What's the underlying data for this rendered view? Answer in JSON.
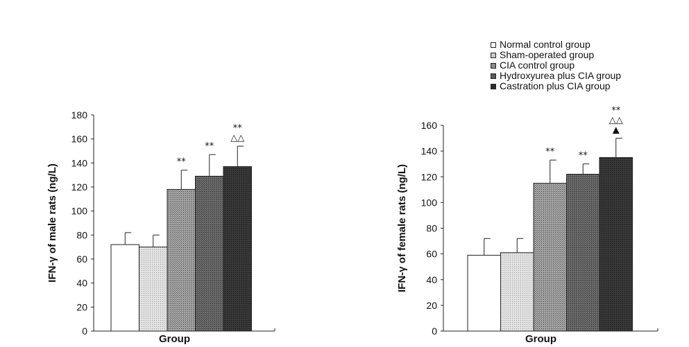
{
  "legend": {
    "entries": [
      "Normal control group",
      "Sham-operated group",
      "CIA control group",
      "Hydroxyurea plus CIA group",
      "Castration plus CIA group"
    ]
  },
  "colors": [
    "#ffffff",
    "#c8c8c8",
    "#8a8a8a",
    "#5e5e5e",
    "#2c2c2c"
  ],
  "chart_data": [
    {
      "type": "bar",
      "xlabel": "Group",
      "ylabel": "IFN-γ of male rats (ng/L)",
      "ylim": [
        0,
        180
      ],
      "yticks": [
        0,
        20,
        40,
        60,
        80,
        100,
        120,
        140,
        160,
        180
      ],
      "categories": [
        "Normal control group",
        "Sham-operated group",
        "CIA control group",
        "Hydroxyurea plus CIA group",
        "Castration plus CIA group"
      ],
      "values": [
        72,
        70,
        118,
        129,
        137
      ],
      "errors": [
        10,
        10,
        16,
        18,
        17
      ],
      "annotations": [
        [],
        [],
        [
          "**"
        ],
        [
          "**"
        ],
        [
          "△△",
          "**"
        ]
      ]
    },
    {
      "type": "bar",
      "xlabel": "Group",
      "ylabel": "IFN-γ of female rats (ng/L)",
      "ylim": [
        0,
        160
      ],
      "yticks": [
        0,
        20,
        40,
        60,
        80,
        100,
        120,
        140,
        160
      ],
      "categories": [
        "Normal control group",
        "Sham-operated group",
        "CIA control group",
        "Hydroxyurea plus CIA group",
        "Castration plus CIA group"
      ],
      "values": [
        59,
        61,
        115,
        122,
        135
      ],
      "errors": [
        13,
        11,
        18,
        8,
        15
      ],
      "annotations": [
        [],
        [],
        [
          "**"
        ],
        [
          "**"
        ],
        [
          "▲",
          "△△",
          "**"
        ]
      ]
    }
  ]
}
